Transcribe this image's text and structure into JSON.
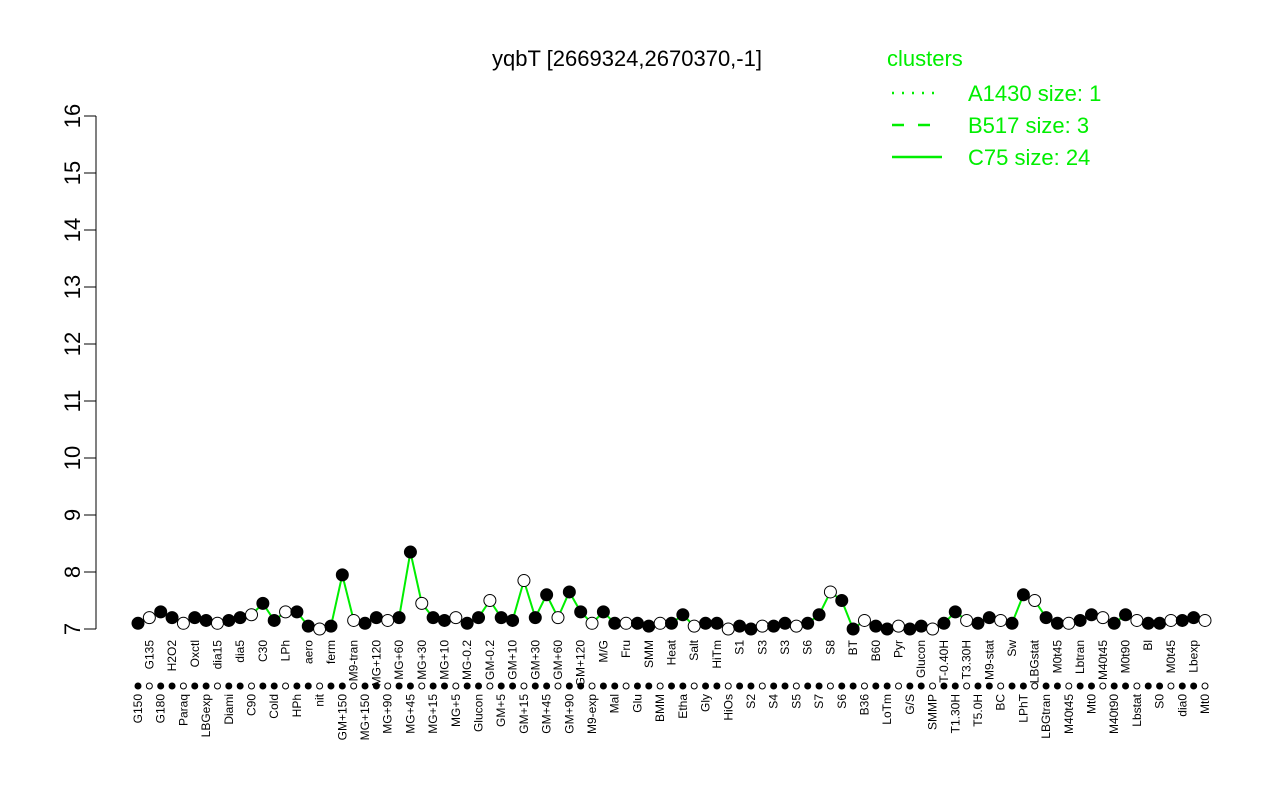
{
  "chart_data": {
    "type": "line",
    "title": "yqbT [2669324,2670370,-1]",
    "xlabel": "",
    "ylabel": "",
    "ylim": [
      7,
      16
    ],
    "yticks": [
      7,
      8,
      9,
      10,
      11,
      12,
      13,
      14,
      15,
      16
    ],
    "grid": false,
    "legend": {
      "title": "clusters",
      "placement": "top-right",
      "entries": [
        {
          "label": "A1430 size: 1",
          "style": "dotted"
        },
        {
          "label": "B517 size: 3",
          "style": "dashed"
        },
        {
          "label": "C75 size: 24",
          "style": "solid"
        }
      ]
    },
    "colors": {
      "line": "#00ee00",
      "legend_text": "#00ee00",
      "point": "#000000"
    },
    "categories": [
      "G150",
      "G135",
      "G180",
      "H2O2",
      "Paraq",
      "Oxctl",
      "LBGexp",
      "dia15",
      "Diami",
      "dia5",
      "C90",
      "C30",
      "Cold",
      "LPh",
      "HPh",
      "aero",
      "nit",
      "ferm",
      "GM+150",
      "M9-tran",
      "MG+150",
      "MG+120",
      "MG+90",
      "MG+60",
      "MG+45",
      "MG+30",
      "MG+15",
      "MG+10",
      "MG+5",
      "MG-0.2",
      "Glucon",
      "GM-0.2",
      "GM+5",
      "GM+10",
      "GM+15",
      "GM+30",
      "GM+45",
      "GM+60",
      "GM+90",
      "GM+120",
      "M9-exp",
      "M/G",
      "Mal",
      "Fru",
      "Glu",
      "SMM",
      "BMM",
      "Heat",
      "Etha",
      "Salt",
      "Gly",
      "HiTm",
      "HiOs",
      "S1",
      "S2",
      "S3",
      "S4",
      "S3",
      "S5",
      "S6",
      "S7",
      "S8",
      "S6",
      "BT",
      "B36",
      "B60",
      "LoTm",
      "Pyr",
      "G/S",
      "Glucon",
      "SMMP",
      "T-0.40H",
      "T1.30H",
      "T3.30H",
      "T5.0H",
      "M9-stat",
      "BC",
      "Sw",
      "LPhT",
      "LBGstat",
      "LBGtran",
      "M0t45",
      "M40t45",
      "Lbtran",
      "Mt0",
      "M40t45",
      "M40t90",
      "M0t90",
      "Lbstat",
      "Bl",
      "S0",
      "M0t45",
      "dia0",
      "Lbexp",
      "Mt0"
    ],
    "values": [
      7.1,
      7.2,
      7.3,
      7.2,
      7.1,
      7.2,
      7.15,
      7.1,
      7.15,
      7.2,
      7.25,
      7.45,
      7.15,
      7.3,
      7.3,
      7.05,
      7.0,
      7.05,
      7.95,
      7.15,
      7.1,
      7.2,
      7.15,
      7.2,
      8.35,
      7.45,
      7.2,
      7.15,
      7.2,
      7.1,
      7.2,
      7.5,
      7.2,
      7.15,
      7.85,
      7.2,
      7.6,
      7.2,
      7.65,
      7.3,
      7.1,
      7.3,
      7.1,
      7.1,
      7.1,
      7.05,
      7.1,
      7.1,
      7.25,
      7.05,
      7.1,
      7.1,
      7.0,
      7.05,
      7.0,
      7.05,
      7.05,
      7.1,
      7.05,
      7.1,
      7.25,
      7.65,
      7.5,
      7.0,
      7.15,
      7.05,
      7.0,
      7.05,
      7.0,
      7.05,
      7.0,
      7.1,
      7.3,
      7.15,
      7.1,
      7.2,
      7.15,
      7.1,
      7.6,
      7.5,
      7.2,
      7.1,
      7.1,
      7.15,
      7.25,
      7.2,
      7.1,
      7.25,
      7.15,
      7.1,
      7.1,
      7.15,
      7.15,
      7.2,
      7.15
    ]
  }
}
